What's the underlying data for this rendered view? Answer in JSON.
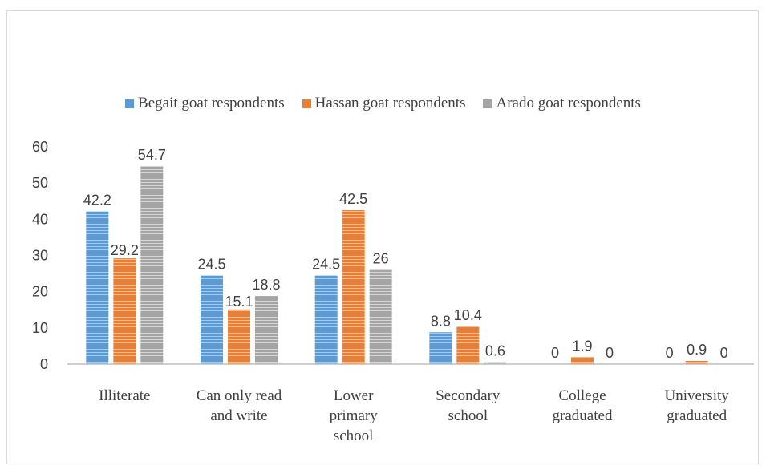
{
  "chart_data": {
    "type": "bar",
    "categories": [
      [
        "Illiterate"
      ],
      [
        "Can only read",
        "and write"
      ],
      [
        "Lower",
        "primary",
        "school"
      ],
      [
        "Secondary",
        "school"
      ],
      [
        "College",
        "graduated"
      ],
      [
        "University",
        "graduated"
      ]
    ],
    "series": [
      {
        "name": "Begait goat respondents",
        "color": "#5b9bd5",
        "values": [
          42.2,
          24.5,
          24.5,
          8.8,
          0,
          0
        ]
      },
      {
        "name": "Hassan goat respondents",
        "color": "#ed7d31",
        "values": [
          29.2,
          15.1,
          42.5,
          10.4,
          1.9,
          0.9
        ]
      },
      {
        "name": "Arado goat respondents",
        "color": "#a5a5a5",
        "values": [
          54.7,
          18.8,
          26,
          0.6,
          0,
          0
        ]
      }
    ],
    "yticks": [
      0,
      10,
      20,
      30,
      40,
      50,
      60
    ],
    "ylim": [
      0,
      60
    ],
    "legend_position": "top",
    "grid": false
  }
}
